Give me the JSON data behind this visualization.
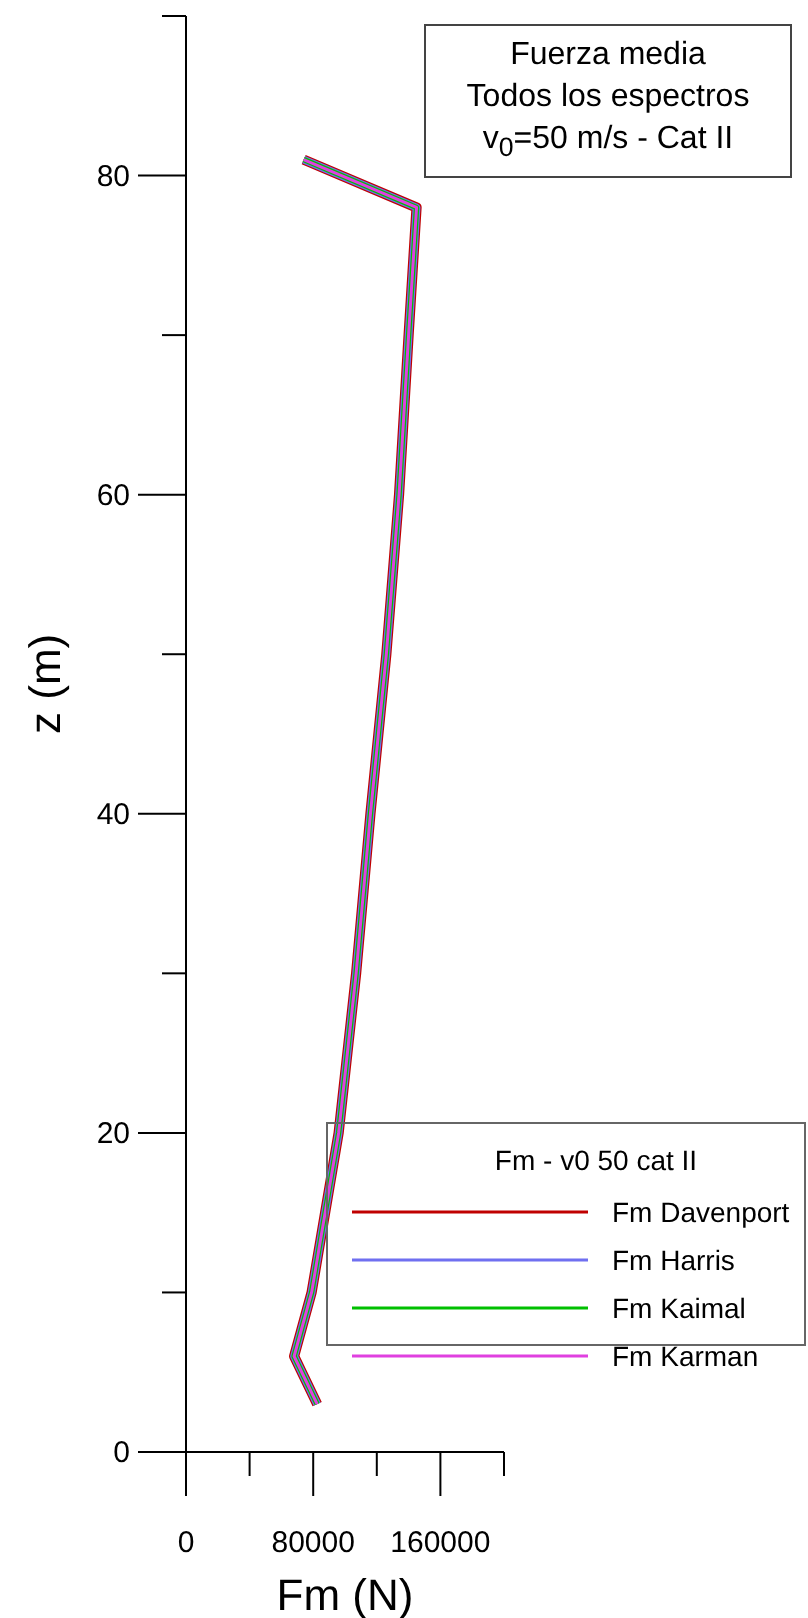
{
  "chart_data": {
    "type": "line",
    "title": "Fuerza media",
    "subtitle": "Todos los espectros",
    "annotations": [
      "v$_{0}$=50 m/s - Cat II"
    ],
    "xlabel": "Fm (N)",
    "ylabel": "z (m)",
    "legend_title": "Fm - v0 50 cat II",
    "legend": "bottom right",
    "grid": false,
    "marker": "none",
    "line_style": "solid",
    "xlim": [
      0,
      200000
    ],
    "xticks": [
      0,
      {
        "value": 40000,
        "label": null
      },
      80000,
      {
        "value": 120000,
        "label": null
      },
      160000,
      {
        "value": 200000,
        "label": null
      }
    ],
    "ylim": [
      0,
      90
    ],
    "yticks": [
      0,
      {
        "value": 10,
        "label": null
      },
      20,
      {
        "value": 30,
        "label": null
      },
      40,
      {
        "value": 50,
        "label": null
      },
      60,
      {
        "value": 70,
        "label": null
      },
      80,
      {
        "value": 90,
        "label": null
      }
    ],
    "series": [
      {
        "name": "Fm Davenport",
        "color": "#c00000",
        "x": [
          82500,
          68000,
          79000,
          96000,
          107000,
          116000,
          126000,
          134000,
          140000,
          145000,
          74000
        ],
        "values": [
          3,
          6,
          10,
          20,
          30,
          40,
          50,
          60,
          70,
          78,
          81
        ]
      },
      {
        "name": "Fm Harris",
        "color": "#6f6ff0",
        "x": [
          82500,
          68000,
          79000,
          96000,
          107000,
          116000,
          126000,
          134000,
          140000,
          145000,
          74000
        ],
        "values": [
          3,
          6,
          10,
          20,
          30,
          40,
          50,
          60,
          70,
          78,
          81
        ]
      },
      {
        "name": "Fm Kaimal",
        "color": "#00c000",
        "x": [
          82500,
          68000,
          79000,
          96000,
          107000,
          116000,
          126000,
          134000,
          140000,
          145000,
          74000
        ],
        "values": [
          3,
          6,
          10,
          20,
          30,
          40,
          50,
          60,
          70,
          78,
          81
        ]
      },
      {
        "name": "Fm Karman",
        "color": "#e040e0",
        "x": [
          82500,
          68000,
          79000,
          96000,
          107000,
          116000,
          126000,
          134000,
          140000,
          145000,
          74000
        ],
        "values": [
          3,
          6,
          10,
          20,
          30,
          40,
          50,
          60,
          70,
          78,
          81
        ]
      }
    ]
  }
}
